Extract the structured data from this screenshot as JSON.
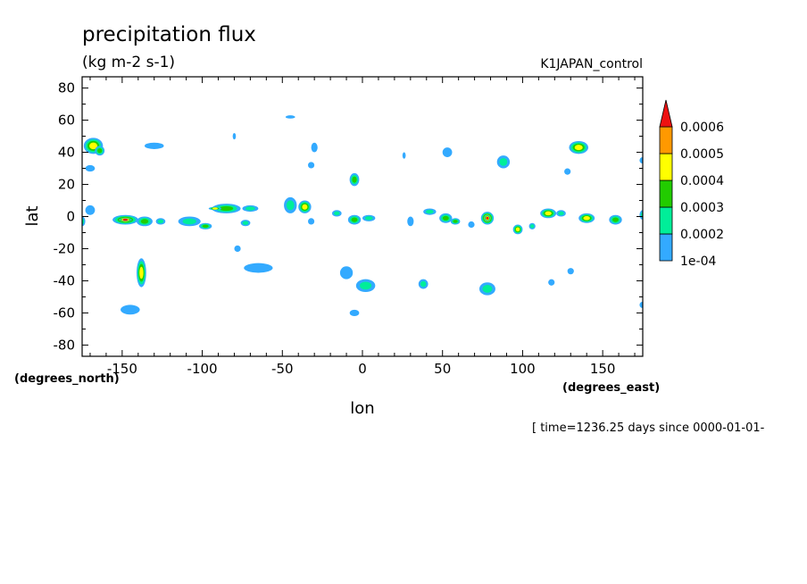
{
  "chart_data": {
    "type": "heatmap",
    "title": "precipitation flux",
    "units": "(kg m-2 s-1)",
    "dataset_label": "K1JAPAN_control",
    "xlabel": "lon",
    "ylabel": "lat",
    "x_units_label": "(degrees_east)",
    "y_units_label": "(degrees_north)",
    "time_label": "[ time=1236.25 days since 0000-01-01-",
    "xlim": [
      -175,
      175
    ],
    "ylim": [
      -87,
      87
    ],
    "x_ticks": [
      -150,
      -100,
      -50,
      0,
      50,
      100,
      150
    ],
    "x_tick_labels": [
      "-150",
      "-100",
      "-50",
      "0",
      "50",
      "100",
      "150"
    ],
    "y_ticks": [
      80,
      60,
      40,
      20,
      0,
      -20,
      -40,
      -60,
      -80
    ],
    "y_tick_labels": [
      "80",
      "60",
      "40",
      "20",
      "0",
      "-20",
      "-40",
      "-60",
      "-80"
    ],
    "colorbar": {
      "levels": [
        0.0001,
        0.0002,
        0.0003,
        0.0004,
        0.0005,
        0.0006
      ],
      "labels": [
        "1e-04",
        "0.0002",
        "0.0003",
        "0.0004",
        "0.0005",
        "0.0006"
      ],
      "colors": [
        "#33aaff",
        "#00ee99",
        "#22cc00",
        "#ffff00",
        "#ff9900",
        "#ee1111"
      ],
      "extend": "max"
    },
    "cells": [
      {
        "lon": -168,
        "lat": 44,
        "rl": 6,
        "rt": 5,
        "v": 0.00042
      },
      {
        "lon": -164,
        "lat": 41,
        "rl": 3,
        "rt": 3,
        "v": 0.00035
      },
      {
        "lon": -170,
        "lat": 30,
        "rl": 3,
        "rt": 2,
        "v": 0.00015
      },
      {
        "lon": -170,
        "lat": 4,
        "rl": 3,
        "rt": 3,
        "v": 0.00018
      },
      {
        "lon": -175,
        "lat": -3,
        "rl": 2,
        "rt": 3,
        "v": 0.00022
      },
      {
        "lon": -148,
        "lat": -2,
        "rl": 8,
        "rt": 3,
        "v": 0.00045
      },
      {
        "lon": -148,
        "lat": -2,
        "rl": 4,
        "rt": 1,
        "v": 0.00062
      },
      {
        "lon": -136,
        "lat": -3,
        "rl": 5,
        "rt": 3,
        "v": 0.00032
      },
      {
        "lon": -126,
        "lat": -3,
        "rl": 3,
        "rt": 2,
        "v": 0.00022
      },
      {
        "lon": -138,
        "lat": -35,
        "rl": 3,
        "rt": 9,
        "v": 0.00045
      },
      {
        "lon": -145,
        "lat": -58,
        "rl": 6,
        "rt": 3,
        "v": 0.00018
      },
      {
        "lon": -130,
        "lat": 44,
        "rl": 6,
        "rt": 2,
        "v": 0.00016
      },
      {
        "lon": -108,
        "lat": -3,
        "rl": 7,
        "rt": 3,
        "v": 0.00028
      },
      {
        "lon": -98,
        "lat": -6,
        "rl": 4,
        "rt": 2,
        "v": 0.00032
      },
      {
        "lon": -85,
        "lat": 5,
        "rl": 9,
        "rt": 3,
        "v": 0.00038
      },
      {
        "lon": -92,
        "lat": 5,
        "rl": 4,
        "rt": 1,
        "v": 0.00045
      },
      {
        "lon": -70,
        "lat": 5,
        "rl": 5,
        "rt": 2,
        "v": 0.00028
      },
      {
        "lon": -73,
        "lat": -4,
        "rl": 3,
        "rt": 2,
        "v": 0.00022
      },
      {
        "lon": -78,
        "lat": -20,
        "rl": 2,
        "rt": 2,
        "v": 0.00014
      },
      {
        "lon": -65,
        "lat": -32,
        "rl": 9,
        "rt": 3,
        "v": 0.00018
      },
      {
        "lon": -80,
        "lat": 50,
        "rl": 1,
        "rt": 2,
        "v": 0.00012
      },
      {
        "lon": -45,
        "lat": 62,
        "rl": 3,
        "rt": 1,
        "v": 0.00013
      },
      {
        "lon": -45,
        "lat": 7,
        "rl": 4,
        "rt": 5,
        "v": 0.00025
      },
      {
        "lon": -36,
        "lat": 6,
        "rl": 4,
        "rt": 4,
        "v": 0.00042
      },
      {
        "lon": -32,
        "lat": -3,
        "rl": 2,
        "rt": 2,
        "v": 0.00016
      },
      {
        "lon": -16,
        "lat": 2,
        "rl": 3,
        "rt": 2,
        "v": 0.00022
      },
      {
        "lon": -30,
        "lat": 43,
        "rl": 2,
        "rt": 3,
        "v": 0.00018
      },
      {
        "lon": -32,
        "lat": 32,
        "rl": 2,
        "rt": 2,
        "v": 0.00015
      },
      {
        "lon": -5,
        "lat": 23,
        "rl": 3,
        "rt": 4,
        "v": 0.00032
      },
      {
        "lon": -5,
        "lat": -2,
        "rl": 4,
        "rt": 3,
        "v": 0.00035
      },
      {
        "lon": 4,
        "lat": -1,
        "rl": 4,
        "rt": 2,
        "v": 0.00025
      },
      {
        "lon": -10,
        "lat": -35,
        "rl": 4,
        "rt": 4,
        "v": 0.00018
      },
      {
        "lon": 2,
        "lat": -43,
        "rl": 6,
        "rt": 4,
        "v": 0.00024
      },
      {
        "lon": -5,
        "lat": -60,
        "rl": 3,
        "rt": 2,
        "v": 0.00016
      },
      {
        "lon": 26,
        "lat": 38,
        "rl": 1,
        "rt": 2,
        "v": 0.00012
      },
      {
        "lon": 30,
        "lat": -3,
        "rl": 2,
        "rt": 3,
        "v": 0.00018
      },
      {
        "lon": 42,
        "lat": 3,
        "rl": 4,
        "rt": 2,
        "v": 0.00026
      },
      {
        "lon": 52,
        "lat": -1,
        "rl": 4,
        "rt": 3,
        "v": 0.00032
      },
      {
        "lon": 58,
        "lat": -3,
        "rl": 3,
        "rt": 2,
        "v": 0.00038
      },
      {
        "lon": 38,
        "lat": -42,
        "rl": 3,
        "rt": 3,
        "v": 0.00022
      },
      {
        "lon": 53,
        "lat": 40,
        "rl": 3,
        "rt": 3,
        "v": 0.00018
      },
      {
        "lon": 78,
        "lat": -1,
        "rl": 4,
        "rt": 4,
        "v": 0.00055
      },
      {
        "lon": 78,
        "lat": -1,
        "rl": 2,
        "rt": 2,
        "v": 0.00064
      },
      {
        "lon": 68,
        "lat": -5,
        "rl": 2,
        "rt": 2,
        "v": 0.00014
      },
      {
        "lon": 78,
        "lat": -45,
        "rl": 5,
        "rt": 4,
        "v": 0.00024
      },
      {
        "lon": 88,
        "lat": 34,
        "rl": 4,
        "rt": 4,
        "v": 0.00026
      },
      {
        "lon": 97,
        "lat": -8,
        "rl": 3,
        "rt": 3,
        "v": 0.00042
      },
      {
        "lon": 106,
        "lat": -6,
        "rl": 2,
        "rt": 2,
        "v": 0.00022
      },
      {
        "lon": 116,
        "lat": 2,
        "rl": 5,
        "rt": 3,
        "v": 0.00045
      },
      {
        "lon": 124,
        "lat": 2,
        "rl": 3,
        "rt": 2,
        "v": 0.00026
      },
      {
        "lon": 140,
        "lat": -1,
        "rl": 5,
        "rt": 3,
        "v": 0.00042
      },
      {
        "lon": 135,
        "lat": 43,
        "rl": 6,
        "rt": 4,
        "v": 0.00045
      },
      {
        "lon": 128,
        "lat": 28,
        "rl": 2,
        "rt": 2,
        "v": 0.00014
      },
      {
        "lon": 130,
        "lat": -34,
        "rl": 2,
        "rt": 2,
        "v": 0.00015
      },
      {
        "lon": 118,
        "lat": -41,
        "rl": 2,
        "rt": 2,
        "v": 0.00015
      },
      {
        "lon": 158,
        "lat": -2,
        "rl": 4,
        "rt": 3,
        "v": 0.00032
      },
      {
        "lon": 175,
        "lat": 1,
        "rl": 2,
        "rt": 3,
        "v": 0.00025
      },
      {
        "lon": 175,
        "lat": 35,
        "rl": 2,
        "rt": 2,
        "v": 0.00012
      },
      {
        "lon": 175,
        "lat": -55,
        "rl": 2,
        "rt": 2,
        "v": 0.00015
      }
    ]
  }
}
